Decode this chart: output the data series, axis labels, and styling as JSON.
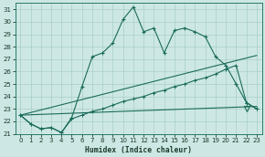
{
  "xlabel": "Humidex (Indice chaleur)",
  "bg_color": "#cde8e4",
  "grid_color": "#a8cdc9",
  "line_color": "#1a6b5a",
  "xlim": [
    -0.5,
    23.5
  ],
  "ylim": [
    21,
    31.5
  ],
  "xticks": [
    0,
    1,
    2,
    3,
    4,
    5,
    6,
    7,
    8,
    9,
    10,
    11,
    12,
    13,
    14,
    15,
    16,
    17,
    18,
    19,
    20,
    21,
    22,
    23
  ],
  "yticks": [
    21,
    22,
    23,
    24,
    25,
    26,
    27,
    28,
    29,
    30,
    31
  ],
  "line1_x": [
    0,
    1,
    2,
    3,
    4,
    5,
    6,
    7,
    8,
    9,
    10,
    11,
    12,
    13,
    14,
    15,
    16,
    17,
    18,
    19,
    20,
    21,
    22,
    23
  ],
  "line1_y": [
    22.5,
    21.8,
    21.4,
    21.5,
    21.1,
    22.3,
    24.8,
    27.2,
    27.5,
    28.3,
    30.2,
    31.2,
    29.2,
    29.5,
    27.5,
    29.3,
    29.5,
    29.2,
    28.8,
    27.2,
    26.5,
    25.0,
    23.5,
    23.0
  ],
  "line2_x": [
    0,
    23
  ],
  "line2_y": [
    22.5,
    23.2
  ],
  "line3_x": [
    0,
    23
  ],
  "line3_y": [
    22.5,
    27.3
  ],
  "line4_x": [
    0,
    1,
    2,
    3,
    4,
    5,
    6,
    7,
    8,
    9,
    10,
    11,
    12,
    13,
    14,
    15,
    16,
    17,
    18,
    19,
    20,
    21,
    22,
    23
  ],
  "line4_y": [
    22.5,
    21.8,
    21.4,
    21.5,
    21.1,
    22.2,
    22.5,
    22.8,
    23.0,
    23.3,
    23.6,
    23.8,
    24.0,
    24.3,
    24.5,
    24.8,
    25.0,
    25.3,
    25.5,
    25.8,
    26.2,
    26.5,
    23.5,
    23.0
  ],
  "tri_x": 22,
  "tri_y": 23.0
}
